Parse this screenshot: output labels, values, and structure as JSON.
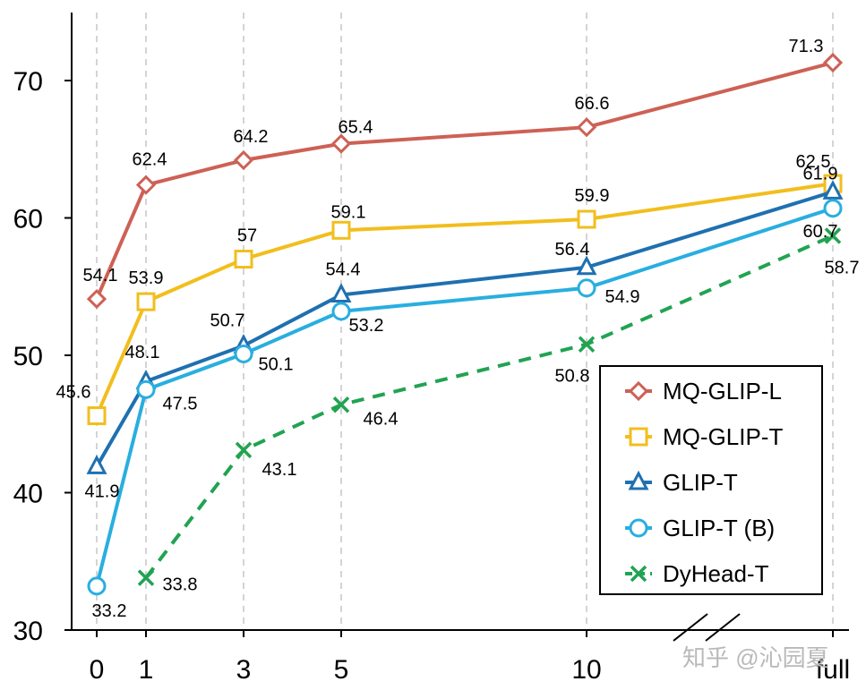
{
  "chart_data": {
    "type": "line",
    "x": [
      "0",
      "1",
      "3",
      "5",
      "10",
      "full"
    ],
    "ylim": [
      30,
      75
    ],
    "yticks": [
      "30",
      "40",
      "50",
      "60",
      "70"
    ],
    "grid": "vertical dashed",
    "legend_position": "bottom-right",
    "series": [
      {
        "name": "MQ-GLIP-L",
        "color": "#cd6155",
        "marker": "diamond",
        "dash": false,
        "values": [
          54.1,
          62.4,
          64.2,
          65.4,
          66.6,
          71.3
        ],
        "labels": [
          "54.1",
          "62.4",
          "64.2",
          "65.4",
          "66.6",
          "71.3"
        ]
      },
      {
        "name": "MQ-GLIP-T",
        "color": "#f2be1d",
        "marker": "square",
        "dash": false,
        "values": [
          45.6,
          53.9,
          57,
          59.1,
          59.9,
          62.5
        ],
        "labels": [
          "45.6",
          "53.9",
          "57",
          "59.1",
          "59.9",
          "62.5"
        ]
      },
      {
        "name": "GLIP-T",
        "color": "#1f70b0",
        "marker": "triangle",
        "dash": false,
        "values": [
          41.9,
          48.1,
          50.7,
          54.4,
          56.4,
          61.9
        ],
        "labels": [
          "41.9",
          "48.1",
          "50.7",
          "54.4",
          "56.4",
          "61.9"
        ]
      },
      {
        "name": "GLIP-T (B)",
        "color": "#29aee0",
        "marker": "circle",
        "dash": false,
        "values": [
          33.2,
          47.5,
          50.1,
          53.2,
          54.9,
          60.7
        ],
        "labels": [
          "33.2",
          "47.5",
          "50.1",
          "53.2",
          "54.9",
          "60.7"
        ]
      },
      {
        "name": "DyHead-T",
        "color": "#21a352",
        "marker": "x",
        "dash": true,
        "values": [
          null,
          33.8,
          43.1,
          46.4,
          50.8,
          58.7
        ],
        "labels": [
          null,
          "33.8",
          "43.1",
          "46.4",
          "50.8",
          "58.7"
        ]
      }
    ],
    "watermark": "知乎 @沁园夏"
  }
}
